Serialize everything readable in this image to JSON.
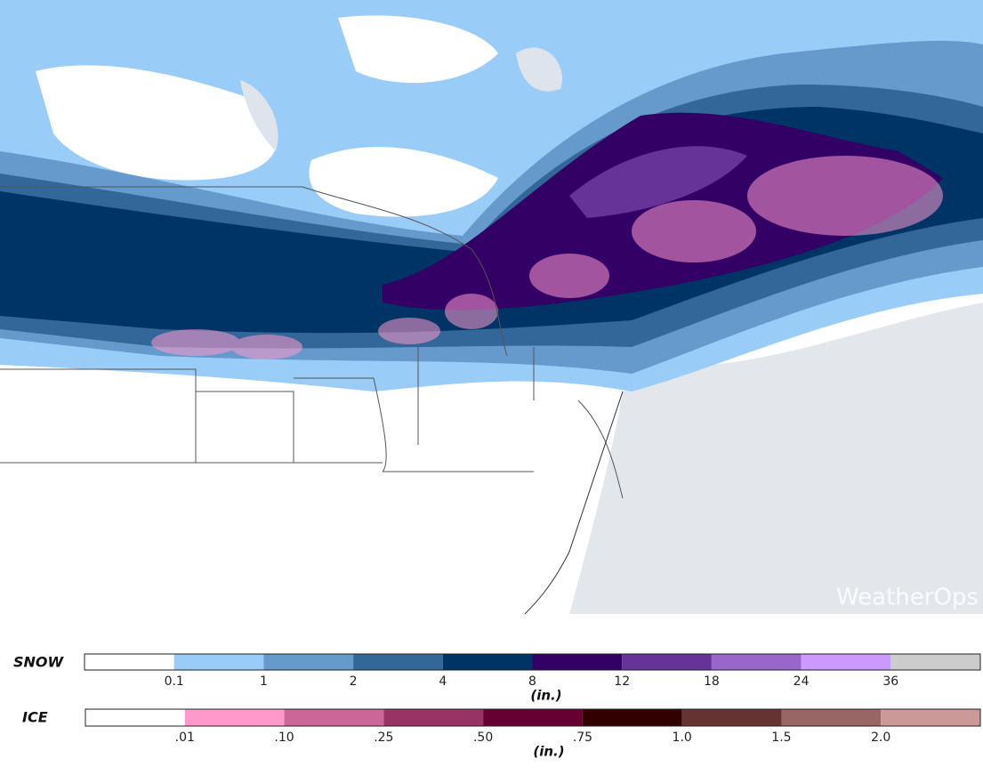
{
  "snow_legend": {
    "title": "SNOW",
    "colors": [
      "#ffffff",
      "#99ccf7",
      "#6699cc",
      "#336699",
      "#003366",
      "#330066",
      "#663399",
      "#9966cc",
      "#cc99ff",
      "#cccccc"
    ],
    "labels": [
      "0.1",
      "1",
      "2",
      "4",
      "8",
      "12",
      "18",
      "24",
      "36"
    ],
    "unit": "(in.)"
  },
  "ice_legend": {
    "title": "ICE",
    "colors": [
      "#ffffff",
      "#ff99cc",
      "#cc6699",
      "#993366",
      "#660033",
      "#330000",
      "#663333",
      "#996666",
      "#cc9999"
    ],
    "labels": [
      ".01",
      ".10",
      ".25",
      ".50",
      ".75",
      "1.0",
      "1.5",
      "2.0"
    ],
    "unit": "(in.)"
  },
  "watermark": "WeatherOps"
}
